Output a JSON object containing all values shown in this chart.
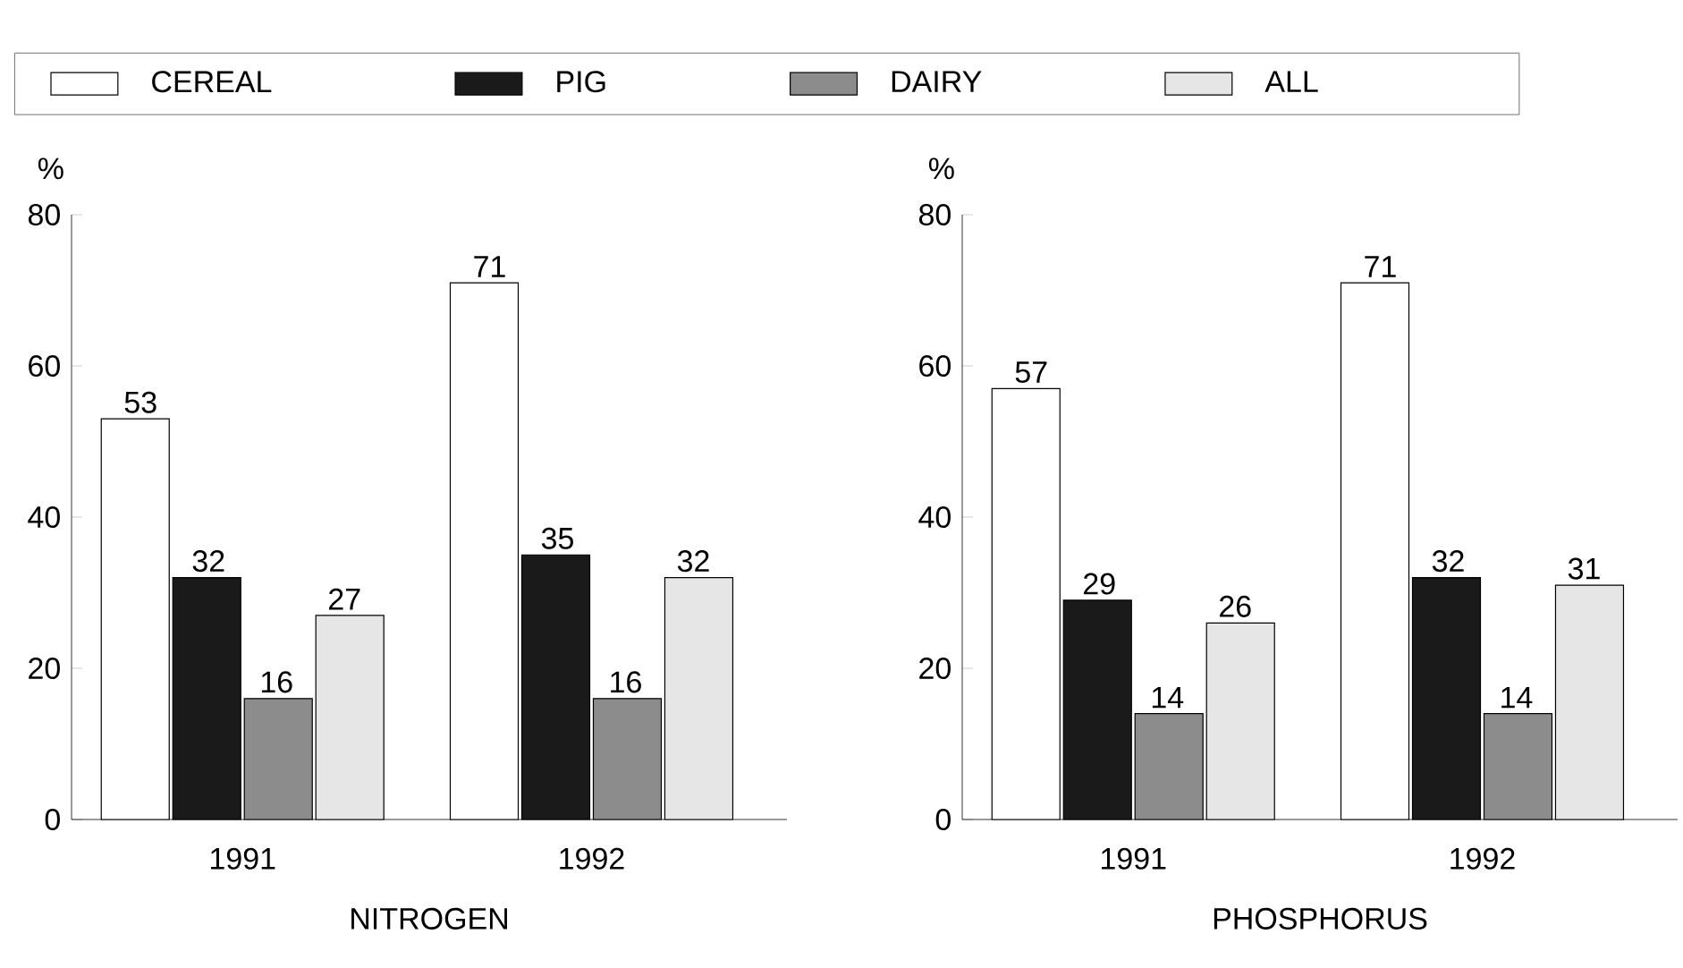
{
  "chart_data": [
    {
      "type": "bar",
      "xlabel": "NITROGEN",
      "ylabel": "%",
      "categories": [
        "1991",
        "1992"
      ],
      "ylim": [
        0,
        80
      ],
      "yticks": [
        0,
        20,
        40,
        60,
        80
      ],
      "data_labels": true,
      "legend": "top",
      "series": [
        {
          "name": "CEREAL",
          "color": "#ffffff",
          "values": [
            53,
            71
          ]
        },
        {
          "name": "PIG",
          "color": "#1a1a1a",
          "values": [
            32,
            35
          ]
        },
        {
          "name": "DAIRY",
          "color": "#8c8c8c",
          "values": [
            16,
            16
          ]
        },
        {
          "name": "ALL",
          "color": "#e6e6e6",
          "values": [
            27,
            32
          ]
        }
      ]
    },
    {
      "type": "bar",
      "xlabel": "PHOSPHORUS",
      "ylabel": "%",
      "categories": [
        "1991",
        "1992"
      ],
      "ylim": [
        0,
        80
      ],
      "yticks": [
        0,
        20,
        40,
        60,
        80
      ],
      "data_labels": true,
      "series": [
        {
          "color": "#ffffff",
          "values": [
            57,
            71
          ]
        },
        {
          "color": "#1a1a1a",
          "values": [
            29,
            32
          ]
        },
        {
          "color": "#8c8c8c",
          "values": [
            14,
            14
          ]
        },
        {
          "color": "#e6e6e6",
          "values": [
            26,
            31
          ]
        }
      ]
    }
  ]
}
